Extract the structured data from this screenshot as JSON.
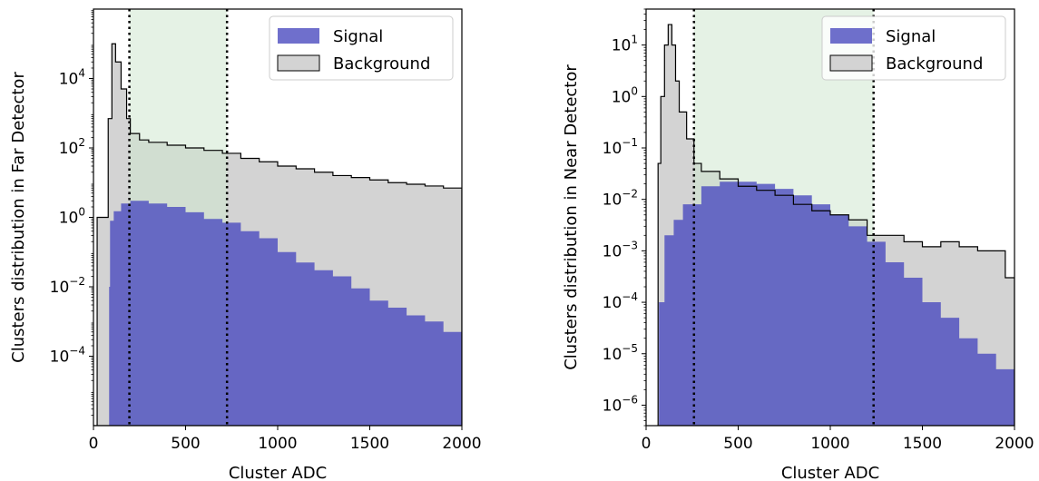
{
  "chart_data": [
    {
      "type": "histogram",
      "xlabel": "Cluster ADC",
      "ylabel": "Clusters distribution in Far Detector",
      "xlim": [
        0,
        2000
      ],
      "ylim": [
        1e-06,
        1000000.0
      ],
      "yscale": "log",
      "x_ticks": [
        "0",
        "500",
        "1000",
        "1500",
        "2000"
      ],
      "y_ticks": [
        {
          "value": 0.0001,
          "base": "10",
          "exp": "−4"
        },
        {
          "value": 0.01,
          "base": "10",
          "exp": "−2"
        },
        {
          "value": 1,
          "base": "10",
          "exp": "0"
        },
        {
          "value": 100,
          "base": "10",
          "exp": "2"
        },
        {
          "value": 10000,
          "base": "10",
          "exp": "4"
        }
      ],
      "selection_window": [
        195,
        725
      ],
      "legend": {
        "position": "upper right",
        "entries": [
          "Signal",
          "Background"
        ]
      },
      "colors": {
        "signal": "#4b4bbf",
        "background": "#d3d3d3",
        "window": "#cfe8cf"
      },
      "series": [
        {
          "name": "Background",
          "points": [
            [
              0,
              1e-06
            ],
            [
              20,
              1
            ],
            [
              80,
              700
            ],
            [
              100,
              100000
            ],
            [
              120,
              30000
            ],
            [
              150,
              5000
            ],
            [
              180,
              700
            ],
            [
              200,
              260
            ],
            [
              250,
              170
            ],
            [
              300,
              145
            ],
            [
              400,
              120
            ],
            [
              500,
              100
            ],
            [
              600,
              85
            ],
            [
              700,
              70
            ],
            [
              800,
              50
            ],
            [
              900,
              40
            ],
            [
              1000,
              30
            ],
            [
              1100,
              25
            ],
            [
              1200,
              20
            ],
            [
              1300,
              16
            ],
            [
              1400,
              14
            ],
            [
              1500,
              12
            ],
            [
              1600,
              10
            ],
            [
              1700,
              9
            ],
            [
              1800,
              8
            ],
            [
              1900,
              7
            ],
            [
              2000,
              6
            ]
          ]
        },
        {
          "name": "Signal",
          "points": [
            [
              80,
              1e-06
            ],
            [
              85,
              0.01
            ],
            [
              90,
              0.8
            ],
            [
              110,
              1.5
            ],
            [
              150,
              2.5
            ],
            [
              200,
              3
            ],
            [
              300,
              2.5
            ],
            [
              400,
              2
            ],
            [
              500,
              1.4
            ],
            [
              600,
              0.9
            ],
            [
              700,
              0.7
            ],
            [
              800,
              0.4
            ],
            [
              900,
              0.25
            ],
            [
              1000,
              0.1
            ],
            [
              1100,
              0.05
            ],
            [
              1200,
              0.03
            ],
            [
              1300,
              0.02
            ],
            [
              1400,
              0.009
            ],
            [
              1500,
              0.004
            ],
            [
              1600,
              0.0025
            ],
            [
              1700,
              0.0015
            ],
            [
              1800,
              0.001
            ],
            [
              1900,
              0.0005
            ],
            [
              2000,
              0.0001
            ]
          ]
        }
      ]
    },
    {
      "type": "histogram",
      "xlabel": "Cluster ADC",
      "ylabel": "Clusters distribution in Near Detector",
      "xlim": [
        0,
        2000
      ],
      "ylim": [
        4e-07,
        50
      ],
      "yscale": "log",
      "x_ticks": [
        "0",
        "500",
        "1000",
        "1500",
        "2000"
      ],
      "y_ticks": [
        {
          "value": 1e-06,
          "base": "10",
          "exp": "−6"
        },
        {
          "value": 1e-05,
          "base": "10",
          "exp": "−5"
        },
        {
          "value": 0.0001,
          "base": "10",
          "exp": "−4"
        },
        {
          "value": 0.001,
          "base": "10",
          "exp": "−3"
        },
        {
          "value": 0.01,
          "base": "10",
          "exp": "−2"
        },
        {
          "value": 0.1,
          "base": "10",
          "exp": "−1"
        },
        {
          "value": 1,
          "base": "10",
          "exp": "0"
        },
        {
          "value": 10,
          "base": "10",
          "exp": "1"
        }
      ],
      "selection_window": [
        260,
        1235
      ],
      "legend": {
        "position": "upper right",
        "entries": [
          "Signal",
          "Background"
        ]
      },
      "colors": {
        "signal": "#4b4bbf",
        "background": "#d3d3d3",
        "window": "#cfe8cf"
      },
      "series": [
        {
          "name": "Background",
          "points": [
            [
              60,
              4e-07
            ],
            [
              65,
              0.05
            ],
            [
              80,
              1
            ],
            [
              100,
              10
            ],
            [
              120,
              25
            ],
            [
              140,
              10
            ],
            [
              160,
              2
            ],
            [
              180,
              0.5
            ],
            [
              220,
              0.15
            ],
            [
              260,
              0.05
            ],
            [
              300,
              0.035
            ],
            [
              400,
              0.025
            ],
            [
              500,
              0.018
            ],
            [
              600,
              0.015
            ],
            [
              700,
              0.012
            ],
            [
              800,
              0.008
            ],
            [
              900,
              0.006
            ],
            [
              1000,
              0.005
            ],
            [
              1100,
              0.004
            ],
            [
              1200,
              0.002
            ],
            [
              1300,
              0.002
            ],
            [
              1400,
              0.0015
            ],
            [
              1500,
              0.0012
            ],
            [
              1600,
              0.0015
            ],
            [
              1700,
              0.0012
            ],
            [
              1800,
              0.001
            ],
            [
              1900,
              0.001
            ],
            [
              1950,
              0.0003
            ],
            [
              2000,
              0.0001
            ]
          ]
        },
        {
          "name": "Signal",
          "points": [
            [
              60,
              4e-07
            ],
            [
              70,
              0.0001
            ],
            [
              100,
              0.002
            ],
            [
              150,
              0.004
            ],
            [
              200,
              0.008
            ],
            [
              300,
              0.018
            ],
            [
              400,
              0.022
            ],
            [
              500,
              0.022
            ],
            [
              600,
              0.02
            ],
            [
              700,
              0.016
            ],
            [
              800,
              0.012
            ],
            [
              900,
              0.008
            ],
            [
              1000,
              0.005
            ],
            [
              1100,
              0.003
            ],
            [
              1200,
              0.0015
            ],
            [
              1300,
              0.0006
            ],
            [
              1400,
              0.0003
            ],
            [
              1500,
              0.0001
            ],
            [
              1600,
              5e-05
            ],
            [
              1700,
              2e-05
            ],
            [
              1800,
              1e-05
            ],
            [
              1900,
              5e-06
            ],
            [
              2000,
              2e-06
            ]
          ]
        }
      ]
    }
  ]
}
